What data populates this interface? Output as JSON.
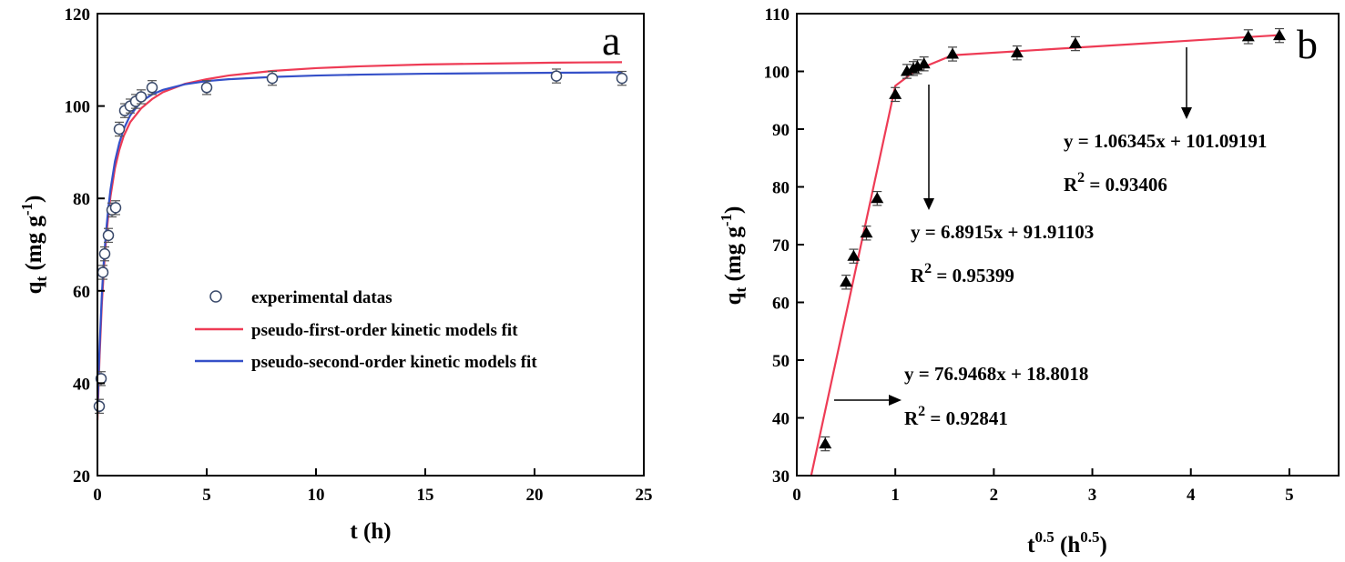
{
  "chart_data": [
    {
      "type": "scatter",
      "panel_label": "a",
      "xlabel": "t (h)",
      "ylabel": {
        "base": "q",
        "sub": "t",
        "unit_open": " (mg g",
        "unit_sup": "-1",
        "unit_close": ")"
      },
      "xlim": [
        0,
        25
      ],
      "ylim": [
        20,
        120
      ],
      "x_ticks": [
        0,
        5,
        10,
        15,
        20,
        25
      ],
      "y_ticks": [
        20,
        40,
        60,
        80,
        100,
        120
      ],
      "grid": false,
      "legend_position": "center-left",
      "colors": {
        "experimental": "#3a4a6b",
        "pfo": "#ee3b55",
        "pso": "#3550c8"
      },
      "series": [
        {
          "name": "experimental datas",
          "style": "open-circle",
          "x": [
            0.083,
            0.167,
            0.25,
            0.333,
            0.5,
            0.667,
            0.833,
            1.0,
            1.25,
            1.5,
            1.75,
            2.0,
            2.5,
            5.0,
            8.0,
            21.0,
            24.0
          ],
          "y": [
            35,
            41,
            64,
            68,
            72,
            77.5,
            78,
            95,
            99,
            100,
            101,
            102,
            104,
            104,
            106,
            106.5,
            106
          ],
          "err": [
            1.5,
            1.5,
            1.5,
            1.5,
            1.5,
            1.5,
            1.5,
            1.5,
            1.5,
            1.5,
            1.5,
            1.5,
            1.5,
            1.5,
            1.5,
            1.5,
            1.5
          ]
        },
        {
          "name": "pseudo-first-order kinetic models fit",
          "style": "line",
          "x": [
            0,
            0.1,
            0.2,
            0.3,
            0.4,
            0.5,
            0.6,
            0.8,
            1.0,
            1.2,
            1.5,
            2.0,
            2.5,
            3.0,
            4.0,
            5.0,
            6.0,
            8.0,
            10.0,
            12.0,
            15.0,
            18.0,
            21.0,
            24.0
          ],
          "y": [
            32,
            46,
            57,
            65,
            71.5,
            76.5,
            80.5,
            86.5,
            90.5,
            93.5,
            96.5,
            99.5,
            101.5,
            103,
            104.8,
            105.8,
            106.6,
            107.6,
            108.2,
            108.6,
            109,
            109.2,
            109.4,
            109.5
          ]
        },
        {
          "name": "pseudo-second-order kinetic models fit",
          "style": "line",
          "x": [
            0,
            0.1,
            0.2,
            0.3,
            0.4,
            0.5,
            0.6,
            0.8,
            1.0,
            1.2,
            1.5,
            2.0,
            2.5,
            3.0,
            4.0,
            5.0,
            6.0,
            8.0,
            10.0,
            12.0,
            15.0,
            18.0,
            21.0,
            24.0
          ],
          "y": [
            34,
            48,
            59,
            67,
            73,
            78,
            82,
            88,
            92,
            95,
            98,
            101,
            102.5,
            103.5,
            104.7,
            105.4,
            105.8,
            106.3,
            106.6,
            106.8,
            107,
            107.1,
            107.2,
            107.3
          ]
        }
      ]
    },
    {
      "type": "scatter",
      "panel_label": "b",
      "xlabel": {
        "base": "t",
        "sup": "0.5",
        "mid": " (h",
        "sup2": "0.5",
        "close": ")"
      },
      "ylabel": {
        "base": "q",
        "sub": "t",
        "unit_open": " (mg g",
        "unit_sup": "-1",
        "unit_close": ")"
      },
      "xlim": [
        0,
        5.5
      ],
      "ylim": [
        30,
        110
      ],
      "x_ticks": [
        0,
        1,
        2,
        3,
        4,
        5
      ],
      "y_ticks": [
        30,
        40,
        50,
        60,
        70,
        80,
        90,
        100,
        110
      ],
      "grid": false,
      "colors": {
        "points": "#000000",
        "fit": "#ee3b55"
      },
      "series": [
        {
          "style": "filled-triangle",
          "x": [
            0.289,
            0.5,
            0.577,
            0.707,
            0.816,
            1.0,
            1.118,
            1.183,
            1.225,
            1.291,
            1.581,
            2.236,
            2.828,
            4.583,
            4.899
          ],
          "y": [
            35.5,
            63.5,
            68,
            72,
            78,
            96,
            100,
            100.5,
            100.8,
            101.3,
            103,
            103.2,
            104.8,
            106,
            106.2
          ],
          "err": [
            1.2,
            1.2,
            1.2,
            1.2,
            1.2,
            1.2,
            1.2,
            1.2,
            1.2,
            1.2,
            1.2,
            1.2,
            1.2,
            1.2,
            1.2
          ]
        },
        {
          "style": "line",
          "x": [
            0.146,
            1.0,
            1.21,
            1.58,
            4.92
          ],
          "y": [
            30,
            97.5,
            100.2,
            102.8,
            106.3
          ]
        }
      ],
      "annotations": [
        {
          "eq": "y = 1.06345x + 101.09191",
          "r2_prefix": "R",
          "r2_sup": "2",
          "r2_value": " = 0.93406"
        },
        {
          "eq": "y = 6.8915x + 91.91103",
          "r2_prefix": "R",
          "r2_sup": "2",
          "r2_value": " = 0.95399"
        },
        {
          "eq": "y = 76.9468x + 18.8018",
          "r2_prefix": "R",
          "r2_sup": "2",
          "r2_value": " = 0.92841"
        }
      ]
    }
  ]
}
